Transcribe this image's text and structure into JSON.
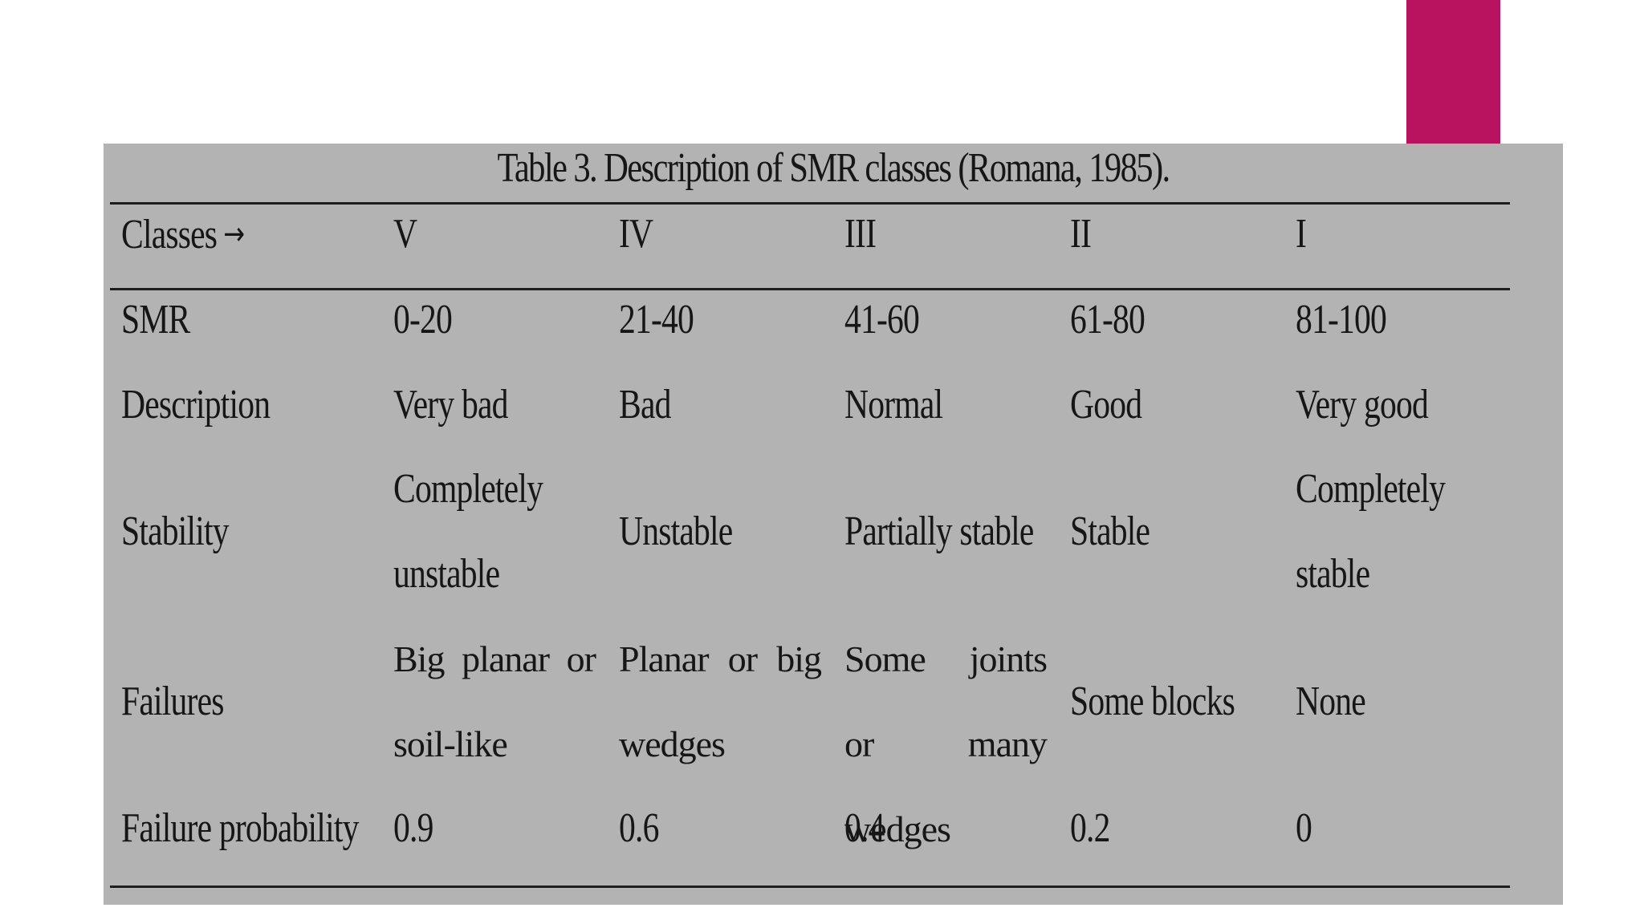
{
  "accent_color": "#b8135f",
  "panel_color": "#b3b3b3",
  "table": {
    "title": "Table 3. Description of SMR classes (Romana, 1985).",
    "header": {
      "label": "Classes",
      "arrow": "→",
      "classes": [
        "V",
        "IV",
        "III",
        "II",
        "I"
      ]
    },
    "rows": [
      {
        "label": "SMR",
        "values": [
          "0-20",
          "21-40",
          "41-60",
          "61-80",
          "81-100"
        ]
      },
      {
        "label": "Description",
        "values": [
          "Very bad",
          "Bad",
          "Normal",
          "Good",
          "Very good"
        ]
      },
      {
        "label": "Stability",
        "values": [
          "Completely unstable",
          "Unstable",
          "Partially stable",
          "Stable",
          "Completely stable"
        ]
      },
      {
        "label": "Failures",
        "values": [
          "Big planar or soil-like",
          "Planar or big wedges",
          "Some joints or many wedges",
          "Some blocks",
          "None"
        ]
      },
      {
        "label": "Failure probability",
        "values": [
          "0.9",
          "0.6",
          "0.4",
          "0.2",
          "0"
        ]
      }
    ]
  }
}
